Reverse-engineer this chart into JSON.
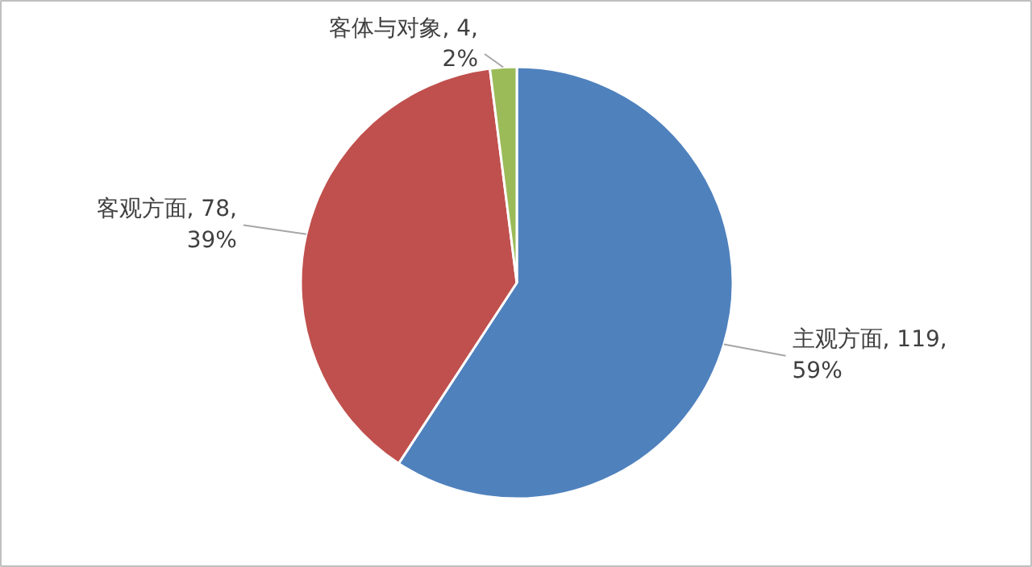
{
  "chart_data": {
    "type": "pie",
    "categories": [
      "主观方面",
      "客观方面",
      "客体与对象"
    ],
    "values": [
      119,
      78,
      4
    ],
    "colors": [
      "#4f81bd",
      "#c0504d",
      "#9bbb59"
    ],
    "value_labels": [
      "119,\n59%",
      "78,\n39%",
      "4,\n2%"
    ],
    "legend": false
  }
}
